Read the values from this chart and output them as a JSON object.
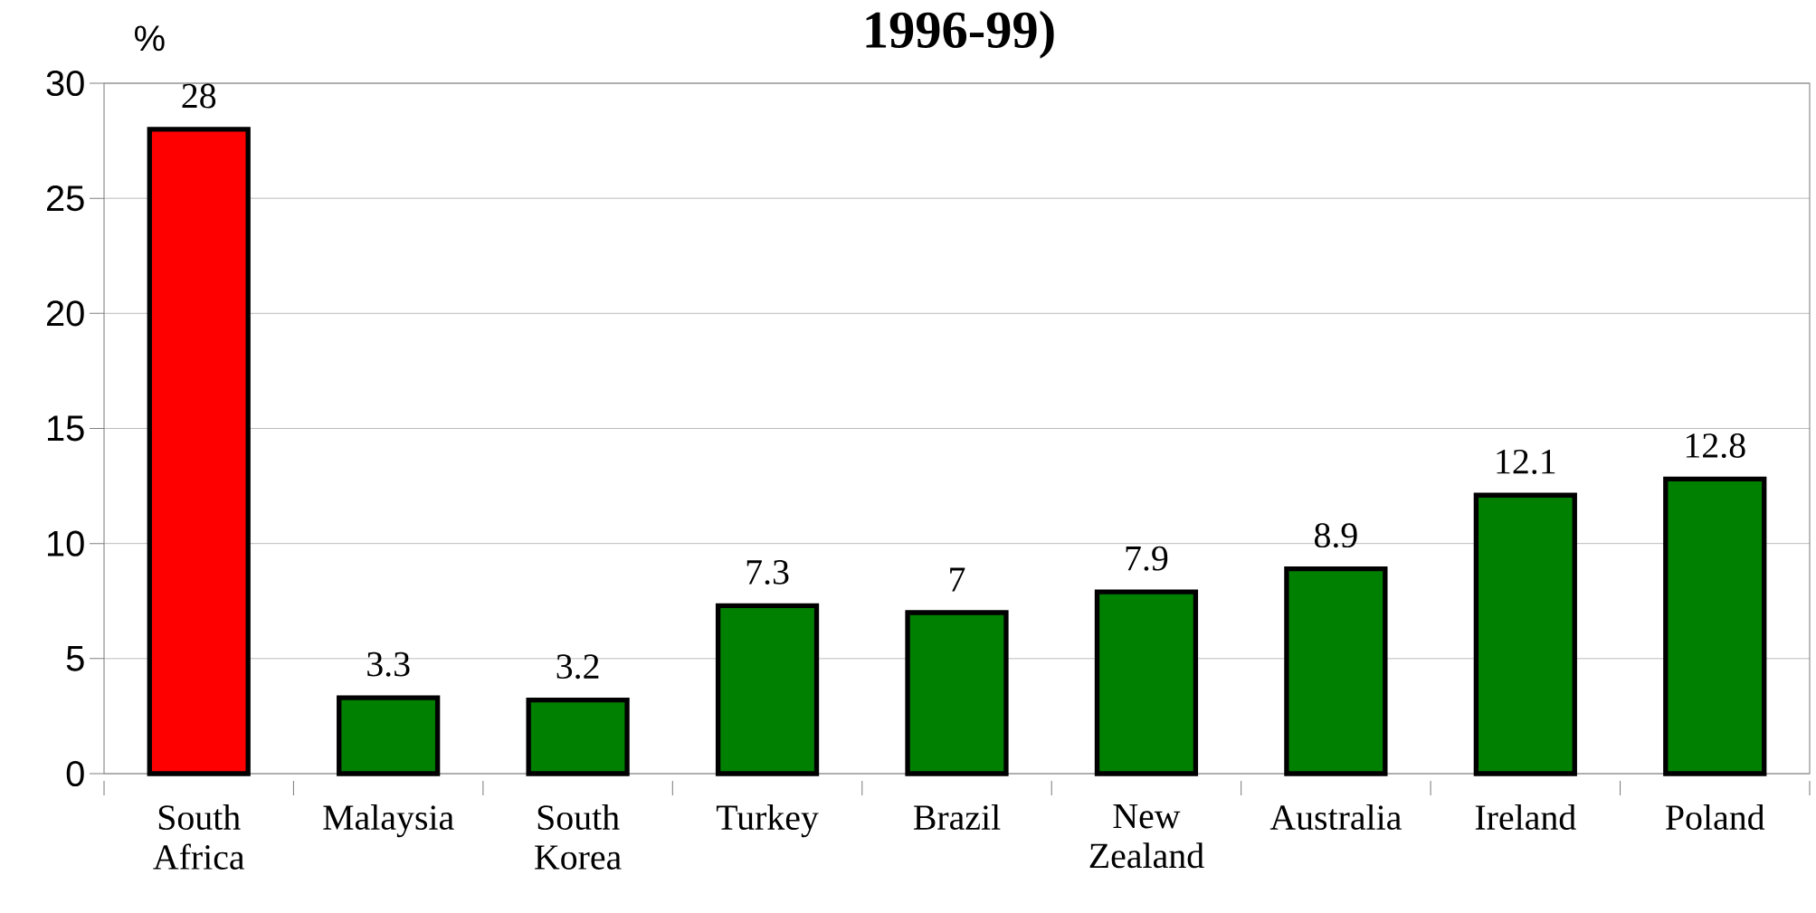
{
  "chart_data": {
    "type": "bar",
    "title": "1996-99)",
    "ylabel": "%",
    "categories": [
      "South Africa",
      "Malaysia",
      "South Korea",
      "Turkey",
      "Brazil",
      "New Zealand",
      "Australia",
      "Ireland",
      "Poland"
    ],
    "values": [
      28,
      3.3,
      3.2,
      7.3,
      7,
      7.9,
      8.9,
      12.1,
      12.8
    ],
    "colors": [
      "#ff0000",
      "#008000",
      "#008000",
      "#008000",
      "#008000",
      "#008000",
      "#008000",
      "#008000",
      "#008000"
    ],
    "ylim": [
      0,
      30
    ],
    "yticks": [
      0,
      5,
      10,
      15,
      20,
      25,
      30
    ],
    "grid": "y",
    "data_labels": true
  }
}
